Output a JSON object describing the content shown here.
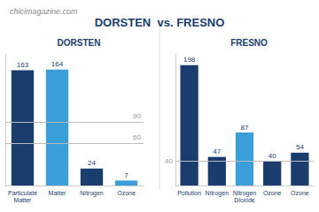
{
  "title": "DORSTEN  vs. FRESNO",
  "annotations": [
    {
      "text": "chicimagazine.com"
    }
  ],
  "chart_data": [
    {
      "type": "bar",
      "title": "DORSTEN",
      "categories": [
        "Particulate\nMatter",
        "Matter",
        "Nitrogen",
        "Ozone"
      ],
      "values": [
        163,
        164,
        24,
        7
      ],
      "colors": [
        "#1b3d6e",
        "#3a9fd9",
        "#1b3d6e",
        "#3a9fd9"
      ],
      "ylim": [
        0,
        185
      ],
      "annotations": [
        {
          "y": 60,
          "text": "60"
        },
        {
          "y": 90,
          "text": "90"
        }
      ],
      "data_labels": true,
      "grid": false,
      "tick_labels": "x"
    },
    {
      "type": "bar",
      "title": "FRESNO",
      "categories": [
        "Pollution",
        "Nitrogen",
        "Nitrogen\nDioxide",
        "Ozone",
        "Ozone"
      ],
      "values": [
        198,
        47,
        87,
        40,
        54
      ],
      "colors": [
        "#1b3d6e",
        "#1b3d6e",
        "#3a9fd9",
        "#1b3d6e",
        "#1b3d6e"
      ],
      "ylim": [
        0,
        215
      ],
      "annotations": [
        {
          "y": 40,
          "text": "40"
        }
      ],
      "data_labels": true,
      "grid": false,
      "tick_labels": "x"
    }
  ]
}
